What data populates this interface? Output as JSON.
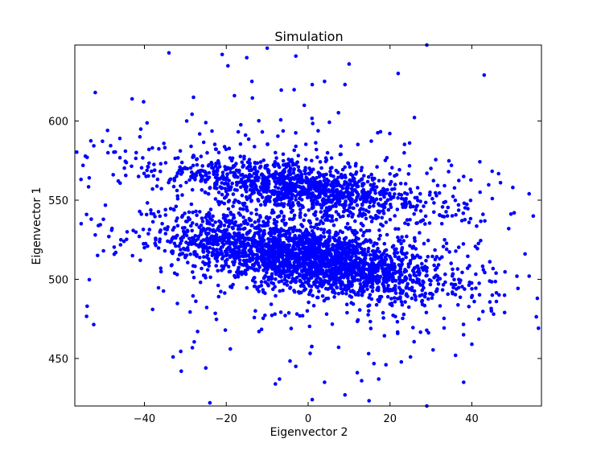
{
  "chart_data": {
    "type": "scatter",
    "title": "Simulation",
    "xlabel": "Eigenvector 2",
    "ylabel": "Eigenvector 1",
    "xlim": [
      -57,
      57
    ],
    "ylim": [
      420,
      648
    ],
    "xticks": [
      -40,
      -20,
      0,
      20,
      40
    ],
    "yticks": [
      450,
      500,
      550,
      600
    ],
    "grid": false,
    "legend": "none",
    "point_color": "#0000ff",
    "point_count_approx": 4000,
    "clusters": [
      {
        "description_free": true,
        "cx": 0,
        "cy": 513,
        "sx": 16,
        "sy": 10,
        "slope": -0.45,
        "weight": 0.55
      },
      {
        "description_free": true,
        "cx": -2,
        "cy": 558,
        "sx": 17,
        "sy": 7,
        "slope": -0.35,
        "weight": 0.25
      }
    ],
    "sample_points": [
      [
        -34,
        643
      ],
      [
        -21,
        642
      ],
      [
        -15,
        640
      ],
      [
        -10,
        646
      ],
      [
        -3,
        641
      ],
      [
        10,
        636
      ],
      [
        29,
        648
      ],
      [
        -52,
        618
      ],
      [
        -43,
        614
      ],
      [
        -28,
        615
      ],
      [
        -18,
        616
      ],
      [
        1,
        623
      ],
      [
        4,
        625
      ],
      [
        9,
        623
      ],
      [
        22,
        630
      ],
      [
        43,
        629
      ],
      [
        -55,
        572
      ],
      [
        -54,
        577
      ],
      [
        -49,
        594
      ],
      [
        -46,
        589
      ],
      [
        -42,
        580
      ],
      [
        -36,
        573
      ],
      [
        -30,
        570
      ],
      [
        -53,
        538
      ],
      [
        -52,
        528
      ],
      [
        -48,
        531
      ],
      [
        -45,
        524
      ],
      [
        -40,
        520
      ],
      [
        -35,
        518
      ],
      [
        -30,
        515
      ],
      [
        -54,
        483
      ],
      [
        -50,
        518
      ],
      [
        -47,
        517
      ],
      [
        -41,
        512
      ],
      [
        -36,
        507
      ],
      [
        -32,
        503
      ],
      [
        -38,
        481
      ],
      [
        -33,
        451
      ],
      [
        -31,
        442
      ],
      [
        -27,
        467
      ],
      [
        -25,
        444
      ],
      [
        -24,
        422
      ],
      [
        -19,
        456
      ],
      [
        -12,
        467
      ],
      [
        -7,
        437
      ],
      [
        -3,
        445
      ],
      [
        1,
        424
      ],
      [
        4,
        435
      ],
      [
        9,
        427
      ],
      [
        12,
        441
      ],
      [
        19,
        446
      ],
      [
        25,
        451
      ],
      [
        29,
        420
      ],
      [
        36,
        452
      ],
      [
        38,
        435
      ],
      [
        40,
        459
      ],
      [
        46,
        486
      ],
      [
        48,
        479
      ],
      [
        54,
        554
      ],
      [
        55,
        540
      ],
      [
        53,
        516
      ],
      [
        56,
        488
      ],
      [
        54,
        502
      ],
      [
        49,
        532
      ],
      [
        30,
        570
      ],
      [
        35,
        572
      ],
      [
        38,
        565
      ],
      [
        42,
        555
      ],
      [
        45,
        551
      ],
      [
        47,
        561
      ],
      [
        50,
        558
      ],
      [
        20,
        560
      ],
      [
        15,
        555
      ],
      [
        10,
        551
      ],
      [
        5,
        552
      ],
      [
        0,
        554
      ],
      [
        -5,
        557
      ],
      [
        -10,
        559
      ],
      [
        -15,
        562
      ],
      [
        -20,
        563
      ],
      [
        -25,
        566
      ],
      [
        -8,
        580
      ],
      [
        -3,
        584
      ],
      [
        2,
        582
      ],
      [
        8,
        579
      ],
      [
        -20,
        515
      ],
      [
        -15,
        512
      ],
      [
        -10,
        516
      ],
      [
        -5,
        513
      ],
      [
        0,
        510
      ],
      [
        5,
        508
      ],
      [
        10,
        506
      ],
      [
        15,
        505
      ],
      [
        20,
        503
      ],
      [
        25,
        500
      ],
      [
        30,
        499
      ],
      [
        35,
        497
      ],
      [
        40,
        494
      ],
      [
        45,
        490
      ]
    ]
  }
}
